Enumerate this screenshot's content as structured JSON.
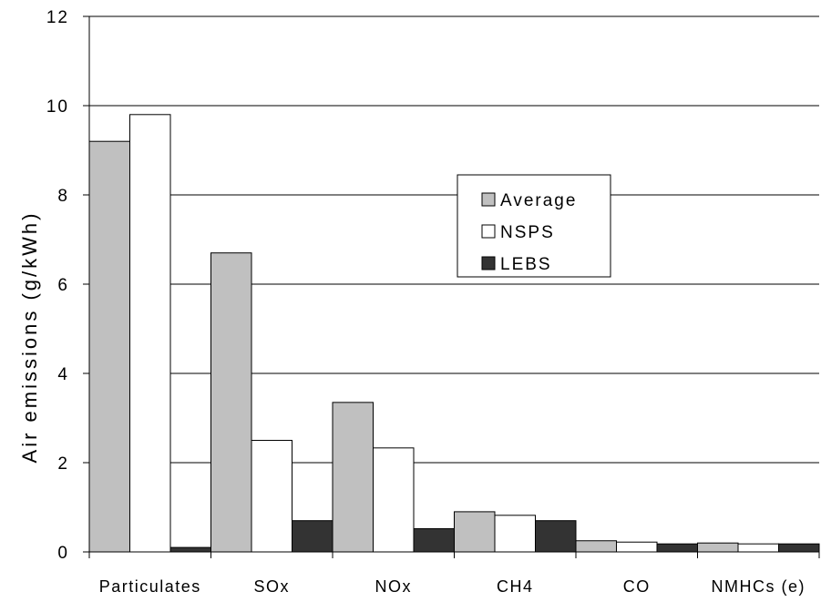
{
  "chart_data": {
    "type": "bar",
    "title": "",
    "xlabel": "",
    "ylabel": "Air emissions (g/kWh)",
    "ylim": [
      0,
      12
    ],
    "yticks": [
      0,
      2,
      4,
      6,
      8,
      10,
      12
    ],
    "grid": true,
    "legend_position": "top-right",
    "categories": [
      "Particulates",
      "SOx",
      "NOx",
      "CH4",
      "CO",
      "NMHCs (e)"
    ],
    "series": [
      {
        "name": "Average",
        "color": "#c0c0c0",
        "values": [
          9.2,
          6.7,
          3.35,
          0.9,
          0.25,
          0.2
        ]
      },
      {
        "name": "NSPS",
        "color": "#ffffff",
        "values": [
          9.8,
          2.5,
          2.33,
          0.82,
          0.22,
          0.18
        ]
      },
      {
        "name": "LEBS",
        "color": "#333333",
        "values": [
          0.1,
          0.7,
          0.52,
          0.7,
          0.18,
          0.18
        ]
      }
    ]
  }
}
